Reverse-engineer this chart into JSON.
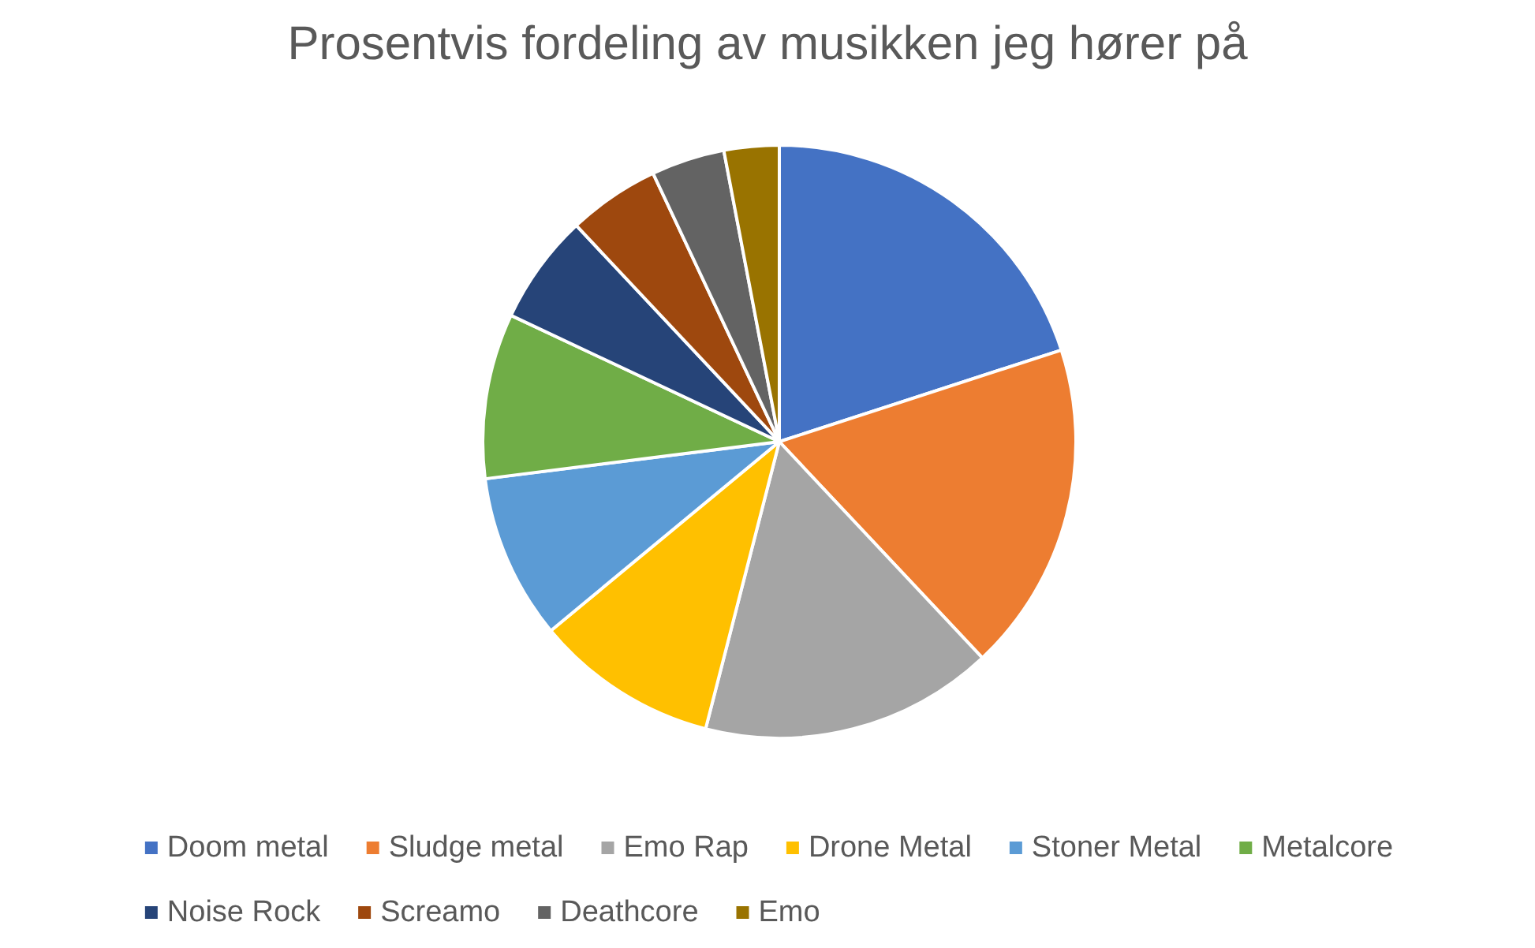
{
  "chart_data": {
    "type": "pie",
    "title": "Prosentvis fordeling av musikken jeg hører på",
    "categories": [
      "Doom metal",
      "Sludge metal",
      "Emo Rap",
      "Drone Metal",
      "Stoner Metal",
      "Metalcore",
      "Noise Rock",
      "Screamo",
      "Deathcore",
      "Emo"
    ],
    "values": [
      20,
      18,
      16,
      10,
      9,
      9,
      6,
      5,
      4,
      3
    ],
    "colors": [
      "#4472c4",
      "#ed7d31",
      "#a5a5a5",
      "#ffc000",
      "#5b9bd5",
      "#70ad47",
      "#264478",
      "#9e480e",
      "#636363",
      "#997300"
    ],
    "legend": "bottom"
  }
}
